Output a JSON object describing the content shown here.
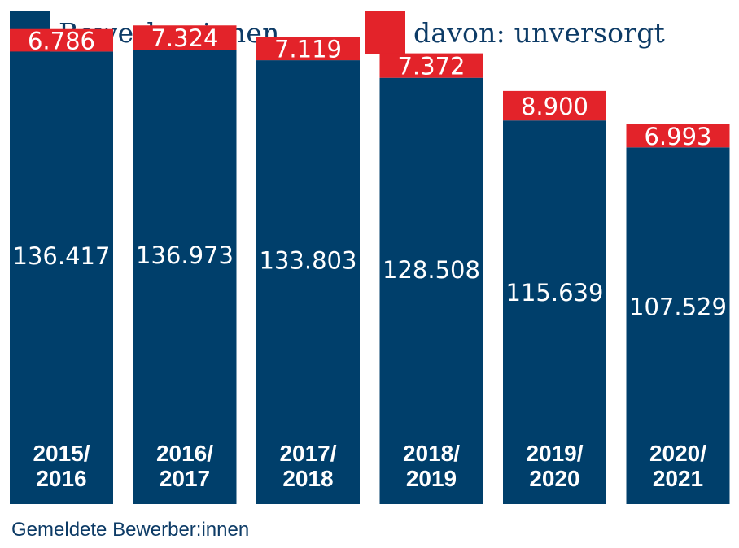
{
  "legend": {
    "items": [
      {
        "label": "Bewerber:innen",
        "color": "#003f6b"
      },
      {
        "label": "davon: unversorgt",
        "color": "#e3232a"
      }
    ]
  },
  "footnote": "Gemeldete Bewerber:innen",
  "colors": {
    "applicants": "#003f6b",
    "unplaced": "#e3232a",
    "label_text": "#ffffff"
  },
  "chart_data": {
    "type": "bar",
    "stacked": true,
    "categories": [
      "2015/ 2016",
      "2016/ 2017",
      "2017/ 2018",
      "2018/ 2019",
      "2019/ 2020",
      "2020/ 2021"
    ],
    "category_lines": [
      [
        "2015/",
        "2016"
      ],
      [
        "2016/",
        "2017"
      ],
      [
        "2017/",
        "2018"
      ],
      [
        "2018/",
        "2019"
      ],
      [
        "2019/",
        "2020"
      ],
      [
        "2020/",
        "2021"
      ]
    ],
    "series": [
      {
        "name": "Bewerber:innen",
        "values": [
          136417,
          136973,
          133803,
          128508,
          115639,
          107529
        ],
        "labels": [
          "136.417",
          "136.973",
          "133.803",
          "128.508",
          "115.639",
          "107.529"
        ]
      },
      {
        "name": "davon: unversorgt",
        "values": [
          6786,
          7324,
          7119,
          7372,
          8900,
          6993
        ],
        "labels": [
          "6.786",
          "7.324",
          "7.119",
          "7.372",
          "8.900",
          "6.993"
        ]
      }
    ],
    "xlabel": "",
    "ylabel": "",
    "grid": false,
    "legend_position": "top"
  }
}
